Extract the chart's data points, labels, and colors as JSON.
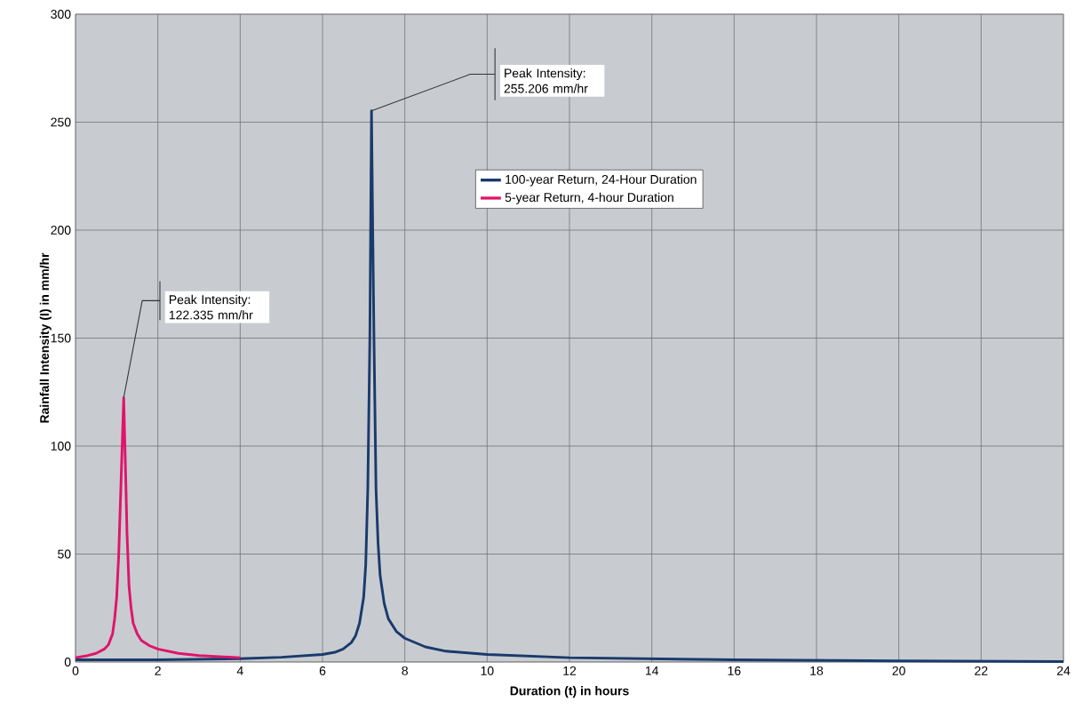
{
  "chart_data": {
    "type": "line",
    "xlabel": "Duration (t) in hours",
    "ylabel": "Rainfall Intensity (I) in mm/hr",
    "xlim": [
      0,
      24
    ],
    "ylim": [
      0,
      300
    ],
    "xticks": [
      0,
      2,
      4,
      6,
      8,
      10,
      12,
      14,
      16,
      18,
      20,
      22,
      24
    ],
    "yticks": [
      0,
      50,
      100,
      150,
      200,
      250,
      300
    ],
    "grid": true,
    "legend": "top",
    "marker": "none",
    "line_style": "solid",
    "series": [
      {
        "name": "100-year Return, 24-Hour Duration",
        "color": "#1a3a6b",
        "x": [
          0,
          2,
          4,
          5,
          6,
          6.3,
          6.5,
          6.7,
          6.8,
          6.9,
          7.0,
          7.05,
          7.1,
          7.15,
          7.19,
          7.22,
          7.25,
          7.3,
          7.35,
          7.4,
          7.5,
          7.6,
          7.8,
          8,
          8.5,
          9,
          10,
          12,
          16,
          20,
          24
        ],
        "values": [
          1,
          1,
          1.5,
          2.2,
          3.5,
          4.5,
          6,
          9,
          12,
          18,
          30,
          45,
          80,
          150,
          255.206,
          200,
          150,
          80,
          55,
          40,
          27,
          20,
          14,
          11,
          7,
          5,
          3.5,
          2,
          1,
          0.5,
          0.2
        ]
      },
      {
        "name": "5-year Return, 4-hour Duration",
        "color": "#e0146a",
        "x": [
          0,
          0.3,
          0.5,
          0.7,
          0.8,
          0.9,
          0.95,
          1.0,
          1.05,
          1.1,
          1.17,
          1.22,
          1.25,
          1.3,
          1.35,
          1.4,
          1.5,
          1.6,
          1.8,
          2.0,
          2.5,
          3,
          4
        ],
        "values": [
          2,
          3,
          4,
          6,
          8,
          13,
          20,
          30,
          50,
          80,
          122.335,
          85,
          60,
          35,
          25,
          18,
          13,
          10,
          7.5,
          6,
          4,
          3,
          2
        ]
      }
    ],
    "annotations": [
      {
        "text": "Peak Intensity: 122.335 mm/hr",
        "x": 1.17,
        "y": 122.335
      },
      {
        "text": "Peak Intensity: 255.206 mm/hr",
        "x": 7.19,
        "y": 255.206
      }
    ]
  }
}
